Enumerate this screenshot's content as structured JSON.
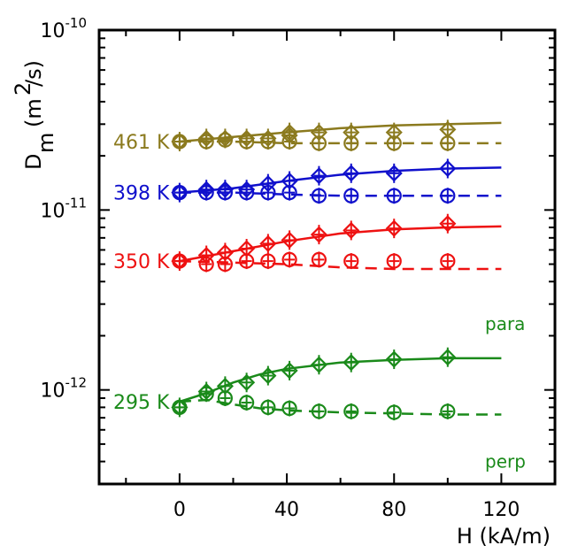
{
  "chart_data": {
    "type": "scatter",
    "title": "",
    "xlabel": "H (kA/m)",
    "ylabel": "D_m (m^2/s)",
    "ylabel_parts": {
      "main": "D",
      "sub": "m",
      "unit_open": "(m",
      "unit_sup": "2",
      "unit_close": "/s)"
    },
    "x_scale": "linear",
    "y_scale": "log",
    "xlim": [
      -30,
      140
    ],
    "ylim": [
      3e-13,
      1e-10
    ],
    "x_ticks": [
      {
        "value": 0,
        "label": "0"
      },
      {
        "value": 40,
        "label": "40"
      },
      {
        "value": 80,
        "label": "80"
      },
      {
        "value": 120,
        "label": "120"
      }
    ],
    "y_ticks": [
      {
        "value": 1e-12,
        "base": "10",
        "exp": "-12"
      },
      {
        "value": 1e-11,
        "base": "10",
        "exp": "-11"
      },
      {
        "value": 1e-10,
        "base": "10",
        "exp": "-10"
      }
    ],
    "grid": false,
    "series": [
      {
        "name": "461 K",
        "color": "#8b7a1e",
        "para_points": [
          [
            0,
            2.4e-11
          ],
          [
            10,
            2.5e-11
          ],
          [
            17,
            2.5e-11
          ],
          [
            25,
            2.5e-11
          ],
          [
            33,
            2.5e-11
          ],
          [
            41,
            2.6e-11
          ],
          [
            41,
            2.7e-11
          ],
          [
            52,
            2.7e-11
          ],
          [
            64,
            2.7e-11
          ],
          [
            80,
            2.7e-11
          ],
          [
            100,
            2.8e-11
          ]
        ],
        "perp_points": [
          [
            0,
            2.4e-11
          ],
          [
            10,
            2.4e-11
          ],
          [
            17,
            2.45e-11
          ],
          [
            25,
            2.4e-11
          ],
          [
            33,
            2.4e-11
          ],
          [
            41,
            2.4e-11
          ],
          [
            52,
            2.35e-11
          ],
          [
            64,
            2.35e-11
          ],
          [
            80,
            2.35e-11
          ],
          [
            100,
            2.35e-11
          ]
        ],
        "para_fit": [
          [
            0,
            2.4e-11
          ],
          [
            20,
            2.55e-11
          ],
          [
            40,
            2.7e-11
          ],
          [
            60,
            2.85e-11
          ],
          [
            80,
            2.95e-11
          ],
          [
            100,
            3e-11
          ],
          [
            120,
            3.05e-11
          ]
        ],
        "perp_fit": [
          [
            0,
            2.4e-11
          ],
          [
            20,
            2.4e-11
          ],
          [
            40,
            2.35e-11
          ],
          [
            60,
            2.35e-11
          ],
          [
            80,
            2.35e-11
          ],
          [
            100,
            2.35e-11
          ],
          [
            120,
            2.35e-11
          ]
        ]
      },
      {
        "name": "398 K",
        "color": "#1010cc",
        "para_points": [
          [
            0,
            1.25e-11
          ],
          [
            10,
            1.3e-11
          ],
          [
            17,
            1.3e-11
          ],
          [
            25,
            1.3e-11
          ],
          [
            33,
            1.4e-11
          ],
          [
            41,
            1.45e-11
          ],
          [
            52,
            1.55e-11
          ],
          [
            64,
            1.6e-11
          ],
          [
            80,
            1.6e-11
          ],
          [
            100,
            1.7e-11
          ]
        ],
        "perp_points": [
          [
            0,
            1.25e-11
          ],
          [
            10,
            1.25e-11
          ],
          [
            17,
            1.25e-11
          ],
          [
            25,
            1.25e-11
          ],
          [
            33,
            1.25e-11
          ],
          [
            41,
            1.25e-11
          ],
          [
            52,
            1.2e-11
          ],
          [
            64,
            1.2e-11
          ],
          [
            80,
            1.2e-11
          ],
          [
            100,
            1.2e-11
          ]
        ],
        "para_fit": [
          [
            0,
            1.25e-11
          ],
          [
            20,
            1.32e-11
          ],
          [
            40,
            1.45e-11
          ],
          [
            60,
            1.57e-11
          ],
          [
            80,
            1.65e-11
          ],
          [
            100,
            1.7e-11
          ],
          [
            120,
            1.72e-11
          ]
        ],
        "perp_fit": [
          [
            0,
            1.25e-11
          ],
          [
            20,
            1.25e-11
          ],
          [
            40,
            1.22e-11
          ],
          [
            60,
            1.2e-11
          ],
          [
            80,
            1.2e-11
          ],
          [
            100,
            1.2e-11
          ],
          [
            120,
            1.2e-11
          ]
        ]
      },
      {
        "name": "350 K",
        "color": "#ee1111",
        "para_points": [
          [
            0,
            5.2e-12
          ],
          [
            10,
            5.6e-12
          ],
          [
            17,
            5.8e-12
          ],
          [
            25,
            6.1e-12
          ],
          [
            33,
            6.5e-12
          ],
          [
            41,
            6.8e-12
          ],
          [
            52,
            7.3e-12
          ],
          [
            64,
            7.7e-12
          ],
          [
            80,
            7.9e-12
          ],
          [
            100,
            8.4e-12
          ]
        ],
        "perp_points": [
          [
            0,
            5.2e-12
          ],
          [
            10,
            5e-12
          ],
          [
            17,
            5e-12
          ],
          [
            25,
            5.2e-12
          ],
          [
            33,
            5.2e-12
          ],
          [
            41,
            5.3e-12
          ],
          [
            52,
            5.3e-12
          ],
          [
            64,
            5.2e-12
          ],
          [
            80,
            5.2e-12
          ],
          [
            100,
            5.2e-12
          ]
        ],
        "para_fit": [
          [
            0,
            5.2e-12
          ],
          [
            20,
            5.9e-12
          ],
          [
            40,
            6.7e-12
          ],
          [
            60,
            7.4e-12
          ],
          [
            80,
            7.8e-12
          ],
          [
            100,
            8e-12
          ],
          [
            120,
            8.1e-12
          ]
        ],
        "perp_fit": [
          [
            0,
            5.2e-12
          ],
          [
            20,
            5.1e-12
          ],
          [
            40,
            5e-12
          ],
          [
            60,
            4.8e-12
          ],
          [
            80,
            4.7e-12
          ],
          [
            100,
            4.7e-12
          ],
          [
            120,
            4.7e-12
          ]
        ]
      },
      {
        "name": "295 K",
        "color": "#1a8a1a",
        "para_points": [
          [
            0,
            8e-13
          ],
          [
            10,
            9.8e-13
          ],
          [
            17,
            1.05e-12
          ],
          [
            25,
            1.1e-12
          ],
          [
            33,
            1.2e-12
          ],
          [
            41,
            1.28e-12
          ],
          [
            52,
            1.38e-12
          ],
          [
            64,
            1.42e-12
          ],
          [
            80,
            1.48e-12
          ],
          [
            100,
            1.52e-12
          ]
        ],
        "perp_points": [
          [
            0,
            8e-13
          ],
          [
            10,
            9.5e-13
          ],
          [
            17,
            9e-13
          ],
          [
            25,
            8.5e-13
          ],
          [
            33,
            8e-13
          ],
          [
            41,
            7.9e-13
          ],
          [
            52,
            7.6e-13
          ],
          [
            64,
            7.6e-13
          ],
          [
            80,
            7.5e-13
          ],
          [
            100,
            7.6e-13
          ]
        ],
        "para_fit": [
          [
            0,
            8.6e-13
          ],
          [
            10,
            9.6e-13
          ],
          [
            20,
            1.1e-12
          ],
          [
            30,
            1.22e-12
          ],
          [
            40,
            1.31e-12
          ],
          [
            60,
            1.42e-12
          ],
          [
            80,
            1.47e-12
          ],
          [
            100,
            1.5e-12
          ],
          [
            120,
            1.5e-12
          ]
        ],
        "perp_fit": [
          [
            0,
            8.6e-13
          ],
          [
            10,
            8.8e-13
          ],
          [
            20,
            8.3e-13
          ],
          [
            30,
            7.9e-13
          ],
          [
            40,
            7.7e-13
          ],
          [
            60,
            7.5e-13
          ],
          [
            80,
            7.4e-13
          ],
          [
            100,
            7.3e-13
          ],
          [
            120,
            7.3e-13
          ]
        ]
      }
    ],
    "annotations": [
      {
        "text": "para",
        "color": "#1a8a1a"
      },
      {
        "text": "perp",
        "color": "#1a8a1a"
      }
    ]
  }
}
